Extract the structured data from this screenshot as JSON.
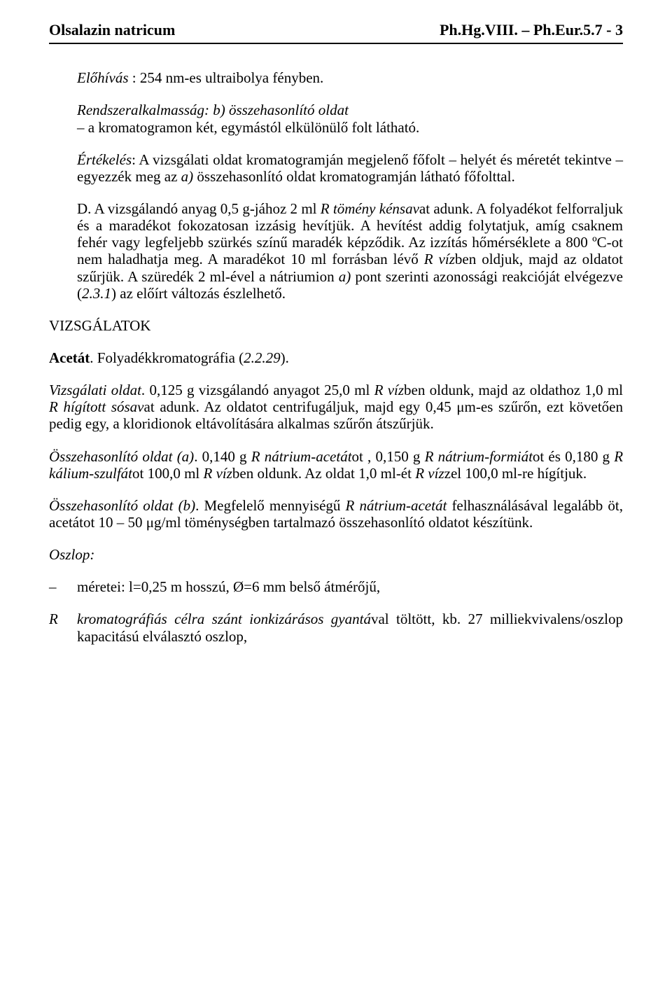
{
  "header": {
    "left": "Olsalazin natricum",
    "right": "Ph.Hg.VIII. – Ph.Eur.5.7 - 3"
  },
  "p1": {
    "label": "Előhívás",
    "text": " : 254 nm-es ultraibolya fényben."
  },
  "p2": {
    "label": "Rendszeralkalmasság: b) összehasonlító oldat",
    "text": "– a kromatogramon két, egymástól elkülönülő folt látható."
  },
  "p3": {
    "label": "Értékelés",
    "text": ": A vizsgálati oldat kromatogramján megjelenő főfolt – helyét és méretét tekintve – egyezzék meg az ",
    "a_label": "a)",
    "text2": " összehasonlító oldat kromatogramján látható főfolttal."
  },
  "p4": {
    "marker": "D. ",
    "text1": "A vizsgálandó anyag 0,5 g-jához 2 ml ",
    "r1": "R tömény kénsav",
    "text2": "at adunk. A folyadékot felforraljuk és a maradékot fokozatosan izzásig hevítjük. A hevítést addig folytatjuk, amíg csaknem fehér vagy legfeljebb szürkés színű maradék képződik. Az izzítás hőmérséklete a 800 ºC-ot nem haladhatja meg. A maradékot 10 ml forrásban lévő ",
    "r2": "R víz",
    "text3": "ben oldjuk, majd az oldatot szűrjük. A szüredék 2 ml-ével a nátriumion ",
    "a_label": "a)",
    "text4": " pont szerinti azonossági reakcióját elvégezve (",
    "ref": "2.3.1",
    "text5": ") az előírt változás észlelhető."
  },
  "section1": "VIZSGÁLATOK",
  "acetat": {
    "bold": "Acetát",
    "text": ". Folyadékkromatográfia (",
    "ref": "2.2.29",
    "text2": ")."
  },
  "p5": {
    "label": "Vizsgálati oldat",
    "text1": ". 0,125 g vizsgálandó anyagot 25,0 ml ",
    "r1": "R víz",
    "text2": "ben oldunk, majd az oldathoz 1,0 ml ",
    "r2": "R hígított sósav",
    "text3": "at adunk. Az oldatot centrifugáljuk, majd egy 0,45 μm-es szűrőn, ezt követően pedig egy, a kloridionok eltávolítására alkalmas szűrőn átszűrjük."
  },
  "p6": {
    "label": "Összehasonlító oldat (a)",
    "text1": ". 0,140 g ",
    "r1": "R nátrium-acetát",
    "text2": "ot , 0,150 g ",
    "r2": "R nátrium-formiát",
    "text3": "ot és 0,180 g ",
    "r3": "R kálium-szulfát",
    "text4": "ot 100,0 ml ",
    "r4": "R víz",
    "text5": "ben oldunk. Az oldat 1,0 ml-ét ",
    "r5": "R víz",
    "text6": "zel 100,0 ml-re hígítjuk."
  },
  "p7": {
    "label": "Összehasonlító oldat (b)",
    "text1": ". Megfelelő mennyiségű ",
    "r1": "R nátrium-acetát",
    "text2": " felhasználásával legalább öt, acetátot 10 – 50 μg/ml töménységben tartalmazó összehasonlító oldatot készítünk."
  },
  "oszlop": "Oszlop:",
  "list1": {
    "marker": "–",
    "text": "méretei: l=0,25 m hosszú, Ø=6 mm belső átmérőjű,"
  },
  "list2": {
    "marker": "R",
    "text1": "kromatográfiás célra szánt ionkizárásos gyantá",
    "text2": "val töltött, kb. 27 milliekvivalens/oszlop kapacitású elválasztó oszlop,"
  }
}
